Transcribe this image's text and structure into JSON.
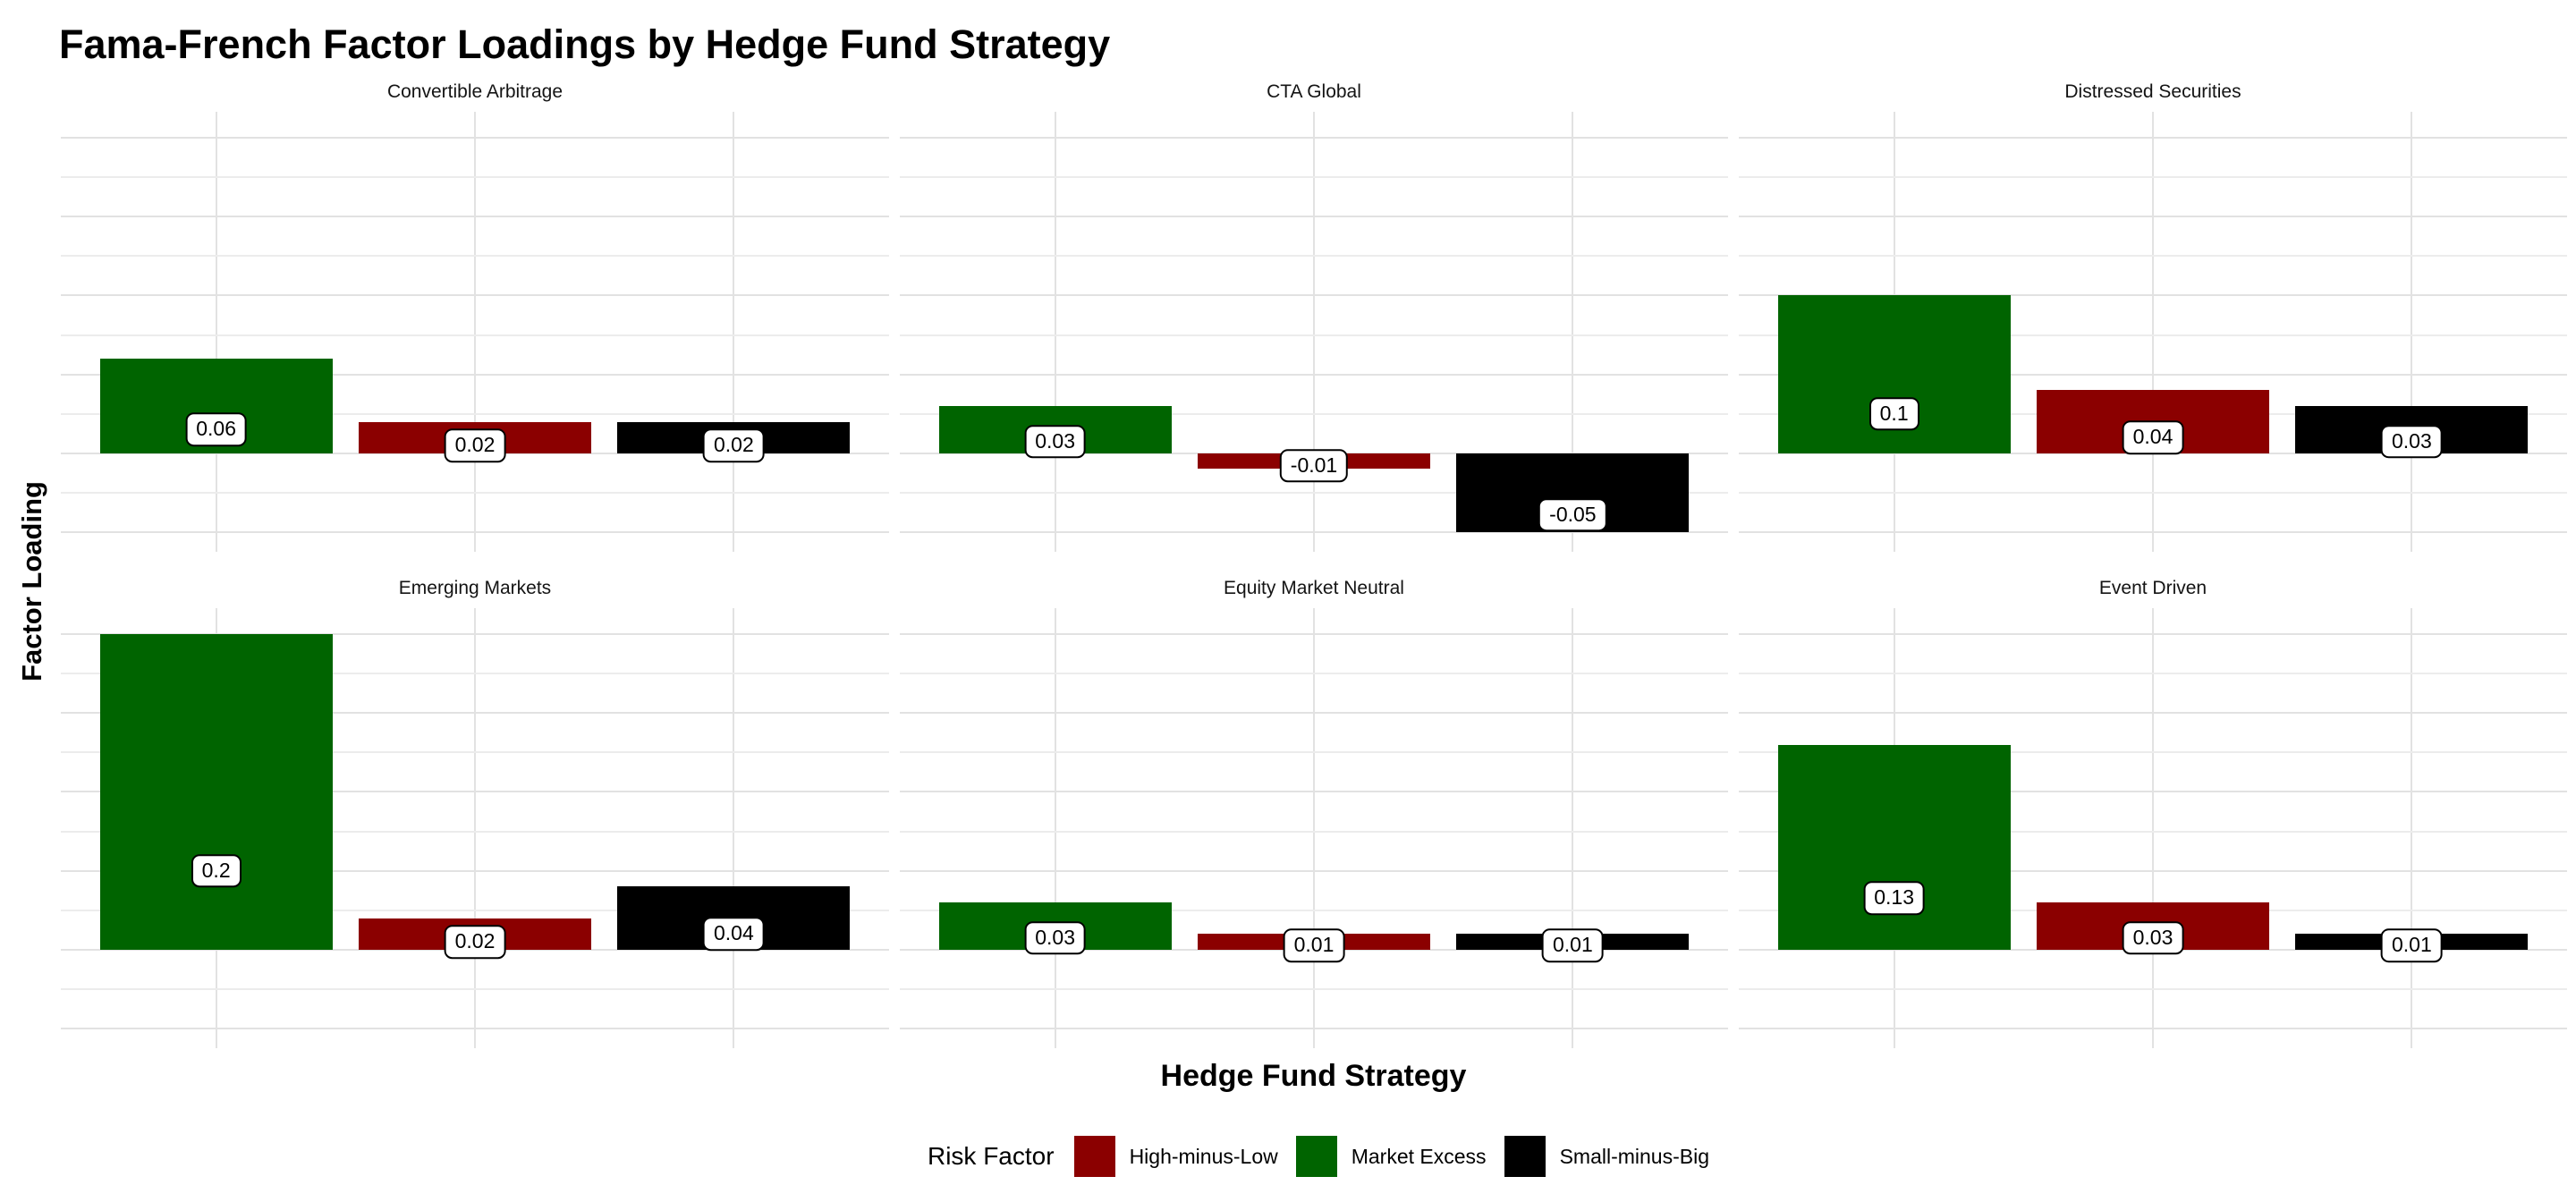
{
  "title": "Fama-French Factor Loadings by Hedge Fund Strategy",
  "axes": {
    "x_title": "Hedge Fund Strategy",
    "y_title": "Factor Loading"
  },
  "legend": {
    "title": "Risk Factor",
    "items": [
      {
        "label": "High-minus-Low",
        "color": "#8B0000"
      },
      {
        "label": "Market Excess",
        "color": "#006400"
      },
      {
        "label": "Small-minus-Big",
        "color": "#000000"
      }
    ]
  },
  "chart_data": {
    "type": "bar",
    "title": "Fama-French Factor Loadings by Hedge Fund Strategy",
    "xlabel": "Hedge Fund Strategy",
    "ylabel": "Factor Loading",
    "facet_layout": {
      "rows": 2,
      "cols": 3
    },
    "series_order": [
      "Market Excess",
      "High-minus-Low",
      "Small-minus-Big"
    ],
    "colors": {
      "Market Excess": "#006400",
      "High-minus-Low": "#8B0000",
      "Small-minus-Big": "#000000"
    },
    "ylim": [
      -0.0625,
      0.2165
    ],
    "gridlines": {
      "min": -0.05,
      "max": 0.2,
      "step": 0.025,
      "minor_color": "#ececec",
      "major_color": "#e2e2e2"
    },
    "value_labels": true,
    "facets": [
      {
        "title": "Convertible Arbitrage",
        "values": [
          0.06,
          0.02,
          0.02
        ]
      },
      {
        "title": "CTA Global",
        "values": [
          0.03,
          -0.01,
          -0.05
        ]
      },
      {
        "title": "Distressed Securities",
        "values": [
          0.1,
          0.04,
          0.03
        ]
      },
      {
        "title": "Emerging Markets",
        "values": [
          0.2,
          0.02,
          0.04
        ]
      },
      {
        "title": "Equity Market Neutral",
        "values": [
          0.03,
          0.01,
          0.01
        ]
      },
      {
        "title": "Event Driven",
        "values": [
          0.13,
          0.03,
          0.01
        ]
      }
    ]
  }
}
